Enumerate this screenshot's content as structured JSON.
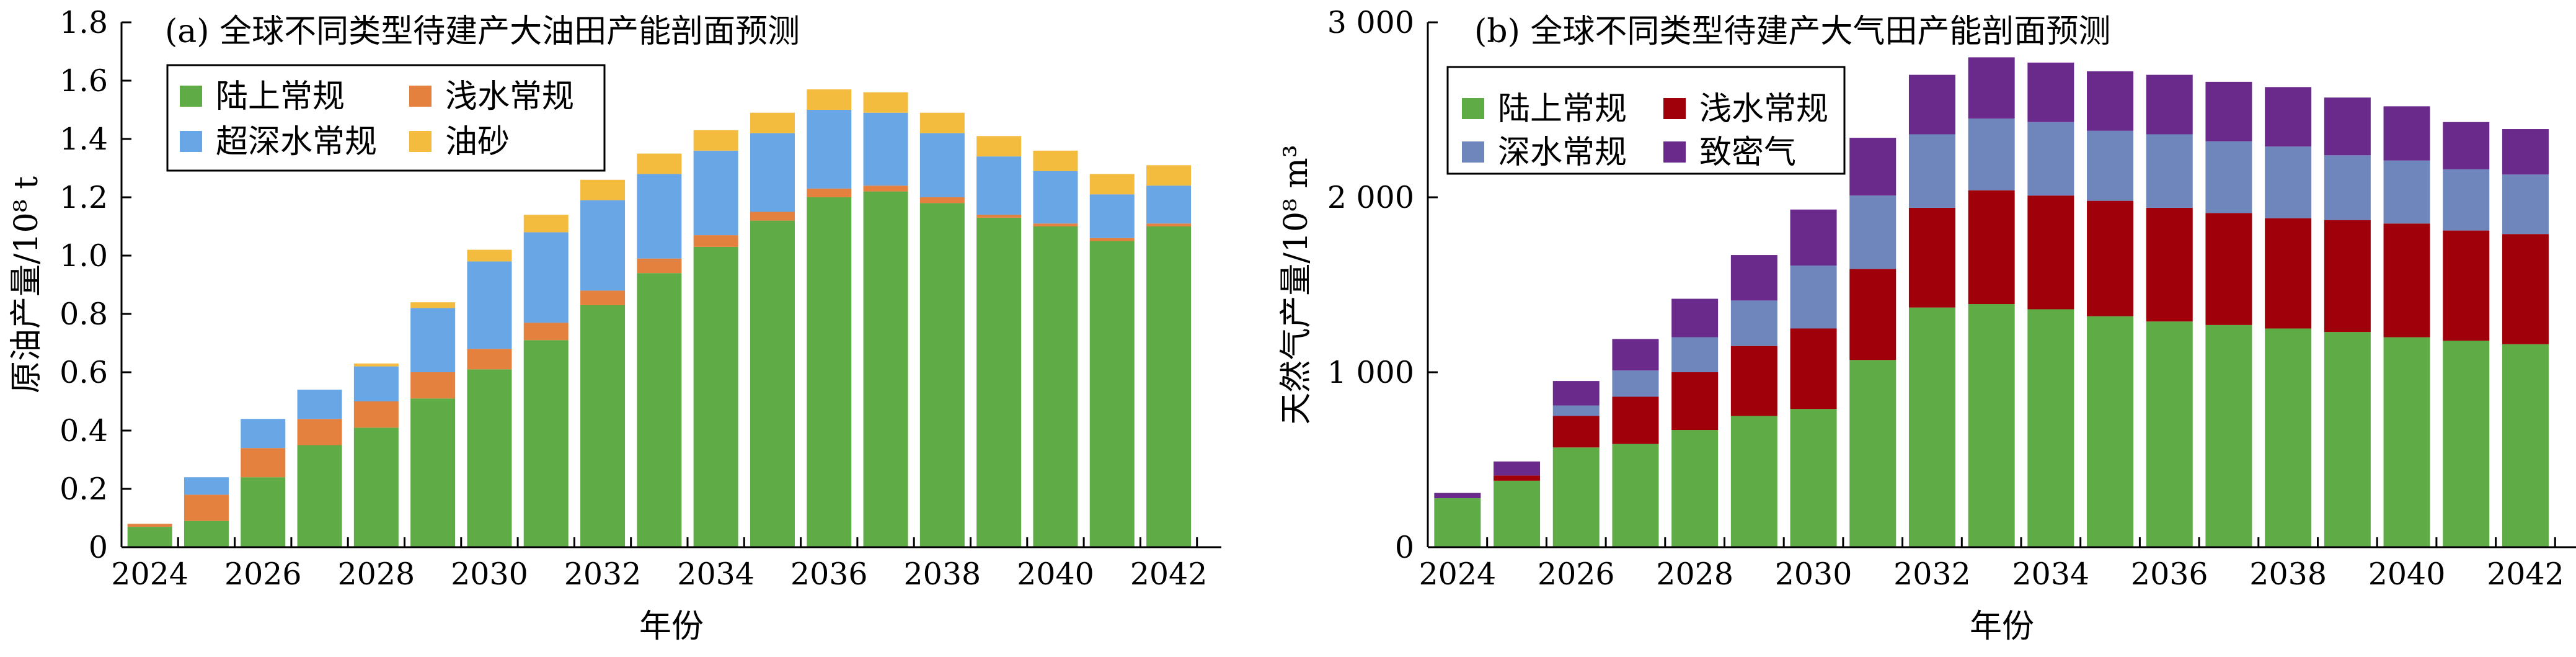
{
  "chart_data": [
    {
      "type": "bar",
      "stacked": true,
      "title": "(a) 全球不同类型待建产大油田产能剖面预测",
      "xlabel": "年份",
      "ylabel": "原油产量/10⁸ t",
      "ylim": [
        0,
        1.8
      ],
      "yticks": [
        "0",
        "0.2",
        "0.4",
        "0.6",
        "0.8",
        "1.0",
        "1.2",
        "1.4",
        "1.6",
        "1.8"
      ],
      "xtick_labels": [
        "2024",
        "2026",
        "2028",
        "2030",
        "2032",
        "2034",
        "2036",
        "2038",
        "2040",
        "2042"
      ],
      "grid": false,
      "legend": "top-left",
      "categories": [
        "2024",
        "2025",
        "2026",
        "2027",
        "2028",
        "2029",
        "2030",
        "2031",
        "2032",
        "2033",
        "2034",
        "2035",
        "2036",
        "2037",
        "2038",
        "2039",
        "2040",
        "2041",
        "2042"
      ],
      "series": [
        {
          "name": "陆上常规",
          "color": "#5fab46",
          "values": [
            0.07,
            0.09,
            0.24,
            0.35,
            0.41,
            0.51,
            0.61,
            0.71,
            0.83,
            0.94,
            1.03,
            1.12,
            1.2,
            1.22,
            1.18,
            1.13,
            1.1,
            1.05,
            1.1
          ]
        },
        {
          "name": "浅水常规",
          "color": "#e5813f",
          "values": [
            0.01,
            0.09,
            0.1,
            0.09,
            0.09,
            0.09,
            0.07,
            0.06,
            0.05,
            0.05,
            0.04,
            0.03,
            0.03,
            0.02,
            0.02,
            0.01,
            0.01,
            0.01,
            0.01
          ]
        },
        {
          "name": "超深水常规",
          "color": "#68a6e6",
          "values": [
            0.0,
            0.06,
            0.1,
            0.1,
            0.12,
            0.22,
            0.3,
            0.31,
            0.31,
            0.29,
            0.29,
            0.27,
            0.27,
            0.25,
            0.22,
            0.2,
            0.18,
            0.15,
            0.13
          ]
        },
        {
          "name": "油砂",
          "color": "#f4bc3e",
          "values": [
            0.0,
            0.0,
            0.0,
            0.0,
            0.01,
            0.02,
            0.04,
            0.06,
            0.07,
            0.07,
            0.07,
            0.07,
            0.07,
            0.07,
            0.07,
            0.07,
            0.07,
            0.07,
            0.07
          ]
        }
      ]
    },
    {
      "type": "bar",
      "stacked": true,
      "title": "(b) 全球不同类型待建产大气田产能剖面预测",
      "xlabel": "年份",
      "ylabel": "天然气产量/10⁸ m³",
      "ylim": [
        0,
        3000
      ],
      "yticks": [
        "0",
        "1 000",
        "2 000",
        "3 000"
      ],
      "xtick_labels": [
        "2024",
        "2026",
        "2028",
        "2030",
        "2032",
        "2034",
        "2036",
        "2038",
        "2040",
        "2042"
      ],
      "grid": false,
      "legend": "top-left",
      "categories": [
        "2024",
        "2025",
        "2026",
        "2027",
        "2028",
        "2029",
        "2030",
        "2031",
        "2032",
        "2033",
        "2034",
        "2035",
        "2036",
        "2037",
        "2038",
        "2039",
        "2040",
        "2041",
        "2042"
      ],
      "series": [
        {
          "name": "陆上常规",
          "color": "#5fab46",
          "values": [
            280,
            380,
            570,
            590,
            670,
            750,
            790,
            1070,
            1370,
            1390,
            1360,
            1320,
            1290,
            1270,
            1250,
            1230,
            1200,
            1180,
            1160
          ]
        },
        {
          "name": "浅水常规",
          "color": "#a0000a",
          "values": [
            0,
            30,
            180,
            270,
            330,
            400,
            460,
            520,
            570,
            650,
            650,
            660,
            650,
            640,
            630,
            640,
            650,
            630,
            630
          ]
        },
        {
          "name": "深水常规",
          "color": "#6f86bd",
          "values": [
            0,
            0,
            60,
            150,
            200,
            260,
            360,
            420,
            420,
            410,
            420,
            400,
            420,
            410,
            410,
            370,
            360,
            350,
            340
          ]
        },
        {
          "name": "致密气",
          "color": "#6a2a8c",
          "values": [
            30,
            80,
            140,
            180,
            220,
            260,
            320,
            330,
            340,
            350,
            340,
            340,
            340,
            340,
            340,
            330,
            310,
            270,
            260
          ]
        }
      ]
    }
  ]
}
